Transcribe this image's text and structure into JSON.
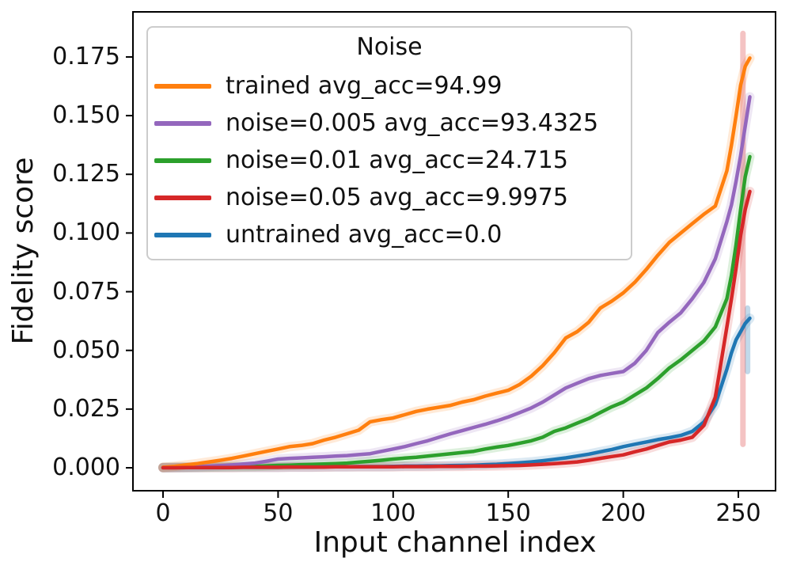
{
  "figure": {
    "background_color": "#ffffff",
    "text_color": "#111111",
    "spine_color": "#000000"
  },
  "chart_data": {
    "type": "line",
    "title": "",
    "xlabel": "Input channel index",
    "ylabel": "Fidelity score",
    "xlim": [
      -13,
      266
    ],
    "ylim": [
      -0.0098,
      0.1942
    ],
    "grid": false,
    "legend": {
      "title": "Noise",
      "position": "upper left",
      "border_color": "#cccccc",
      "background_color": "#ffffff"
    },
    "axes": {
      "xticks": [
        0,
        50,
        100,
        150,
        200,
        250
      ],
      "xtick_labels": [
        "0",
        "50",
        "100",
        "150",
        "200",
        "250"
      ],
      "yticks": [
        0.0,
        0.025,
        0.05,
        0.075,
        0.1,
        0.125,
        0.15,
        0.175
      ],
      "ytick_labels": [
        "0.000",
        "0.025",
        "0.050",
        "0.075",
        "0.100",
        "0.125",
        "0.150",
        "0.175"
      ]
    },
    "channels": [
      0,
      5,
      10,
      15,
      20,
      25,
      30,
      35,
      40,
      45,
      50,
      55,
      60,
      65,
      70,
      75,
      80,
      85,
      90,
      95,
      100,
      105,
      110,
      115,
      120,
      125,
      130,
      135,
      140,
      145,
      150,
      155,
      160,
      165,
      170,
      175,
      180,
      185,
      190,
      195,
      200,
      205,
      210,
      215,
      220,
      225,
      230,
      235,
      240,
      245,
      247,
      249,
      251,
      253,
      255
    ],
    "draw_order": [
      4,
      2,
      1,
      0,
      3
    ],
    "series": [
      {
        "name": "trained",
        "label": "trained avg_acc=94.99",
        "avg_acc": 94.99,
        "color": "#ff7f0e",
        "values": [
          0.0002,
          0.0006,
          0.0012,
          0.0018,
          0.0025,
          0.0032,
          0.004,
          0.005,
          0.006,
          0.007,
          0.008,
          0.009,
          0.0095,
          0.0103,
          0.0118,
          0.013,
          0.0145,
          0.016,
          0.0196,
          0.0205,
          0.0212,
          0.0226,
          0.024,
          0.025,
          0.0258,
          0.0266,
          0.028,
          0.029,
          0.0305,
          0.0318,
          0.033,
          0.0355,
          0.039,
          0.0435,
          0.049,
          0.0553,
          0.058,
          0.062,
          0.068,
          0.071,
          0.0745,
          0.079,
          0.0845,
          0.0905,
          0.096,
          0.1,
          0.104,
          0.108,
          0.1115,
          0.1265,
          0.1375,
          0.15,
          0.163,
          0.171,
          0.1745
        ]
      },
      {
        "name": "noise-0.005",
        "label": "noise=0.005 avg_acc=93.4325",
        "avg_acc": 93.4325,
        "color": "#9467bd",
        "values": [
          0.0001,
          0.0002,
          0.0003,
          0.0005,
          0.0007,
          0.0009,
          0.0012,
          0.0016,
          0.002,
          0.0028,
          0.0037,
          0.004,
          0.0042,
          0.0045,
          0.0047,
          0.005,
          0.0052,
          0.0056,
          0.006,
          0.007,
          0.008,
          0.009,
          0.0103,
          0.0115,
          0.013,
          0.0145,
          0.0158,
          0.0172,
          0.0185,
          0.02,
          0.0216,
          0.0235,
          0.0255,
          0.028,
          0.031,
          0.034,
          0.036,
          0.038,
          0.0393,
          0.0402,
          0.041,
          0.0445,
          0.05,
          0.0576,
          0.062,
          0.066,
          0.072,
          0.0789,
          0.089,
          0.1049,
          0.112,
          0.122,
          0.133,
          0.1455,
          0.158
        ]
      },
      {
        "name": "noise-0.01",
        "label": "noise=0.01 avg_acc=24.715",
        "avg_acc": 24.715,
        "color": "#2ca02c",
        "values": [
          0.0001,
          0.0002,
          0.0002,
          0.0003,
          0.0003,
          0.0004,
          0.0005,
          0.0005,
          0.0006,
          0.0008,
          0.001,
          0.0011,
          0.0013,
          0.0014,
          0.0016,
          0.0018,
          0.002,
          0.0024,
          0.0028,
          0.0032,
          0.0037,
          0.0041,
          0.0045,
          0.005,
          0.0055,
          0.006,
          0.0065,
          0.007,
          0.008,
          0.0088,
          0.0095,
          0.0105,
          0.0115,
          0.013,
          0.0155,
          0.017,
          0.019,
          0.021,
          0.0235,
          0.026,
          0.028,
          0.031,
          0.034,
          0.038,
          0.0425,
          0.046,
          0.05,
          0.054,
          0.06,
          0.072,
          0.082,
          0.095,
          0.11,
          0.124,
          0.1325
        ]
      },
      {
        "name": "noise-0.05",
        "label": "noise=0.05 avg_acc=9.9975",
        "avg_acc": 9.9975,
        "color": "#d62728",
        "values": [
          0.0,
          0.0,
          0.0001,
          0.0001,
          0.0001,
          0.0001,
          0.0001,
          0.0002,
          0.0002,
          0.0002,
          0.0002,
          0.0003,
          0.0003,
          0.0003,
          0.0003,
          0.0004,
          0.0004,
          0.0004,
          0.0004,
          0.0004,
          0.0004,
          0.0005,
          0.0005,
          0.0005,
          0.0006,
          0.0006,
          0.0006,
          0.0007,
          0.0007,
          0.0008,
          0.0009,
          0.001,
          0.0012,
          0.0015,
          0.0018,
          0.0021,
          0.0025,
          0.0032,
          0.004,
          0.0048,
          0.0055,
          0.0068,
          0.008,
          0.0095,
          0.011,
          0.0118,
          0.013,
          0.018,
          0.03,
          0.06,
          0.072,
          0.085,
          0.099,
          0.11,
          0.1177
        ],
        "end_band": {
          "channel": 252,
          "from": 0.01,
          "to": 0.185
        }
      },
      {
        "name": "untrained",
        "label": "untrained avg_acc=0.0",
        "avg_acc": 0.0,
        "color": "#1f77b4",
        "values": [
          0.0001,
          0.0001,
          0.0001,
          0.0001,
          0.0002,
          0.0002,
          0.0002,
          0.0002,
          0.0002,
          0.0002,
          0.0002,
          0.0003,
          0.0003,
          0.0003,
          0.0004,
          0.0004,
          0.0004,
          0.0005,
          0.0005,
          0.0005,
          0.0006,
          0.0007,
          0.0007,
          0.0008,
          0.0008,
          0.0009,
          0.001,
          0.0011,
          0.0013,
          0.0015,
          0.0018,
          0.0021,
          0.0025,
          0.003,
          0.0036,
          0.0042,
          0.005,
          0.0058,
          0.0068,
          0.0078,
          0.009,
          0.01,
          0.011,
          0.012,
          0.0128,
          0.0138,
          0.0155,
          0.0195,
          0.027,
          0.042,
          0.049,
          0.0545,
          0.058,
          0.0615,
          0.0637
        ],
        "end_band": {
          "channel": 254,
          "from": 0.041,
          "to": 0.068
        }
      }
    ]
  }
}
